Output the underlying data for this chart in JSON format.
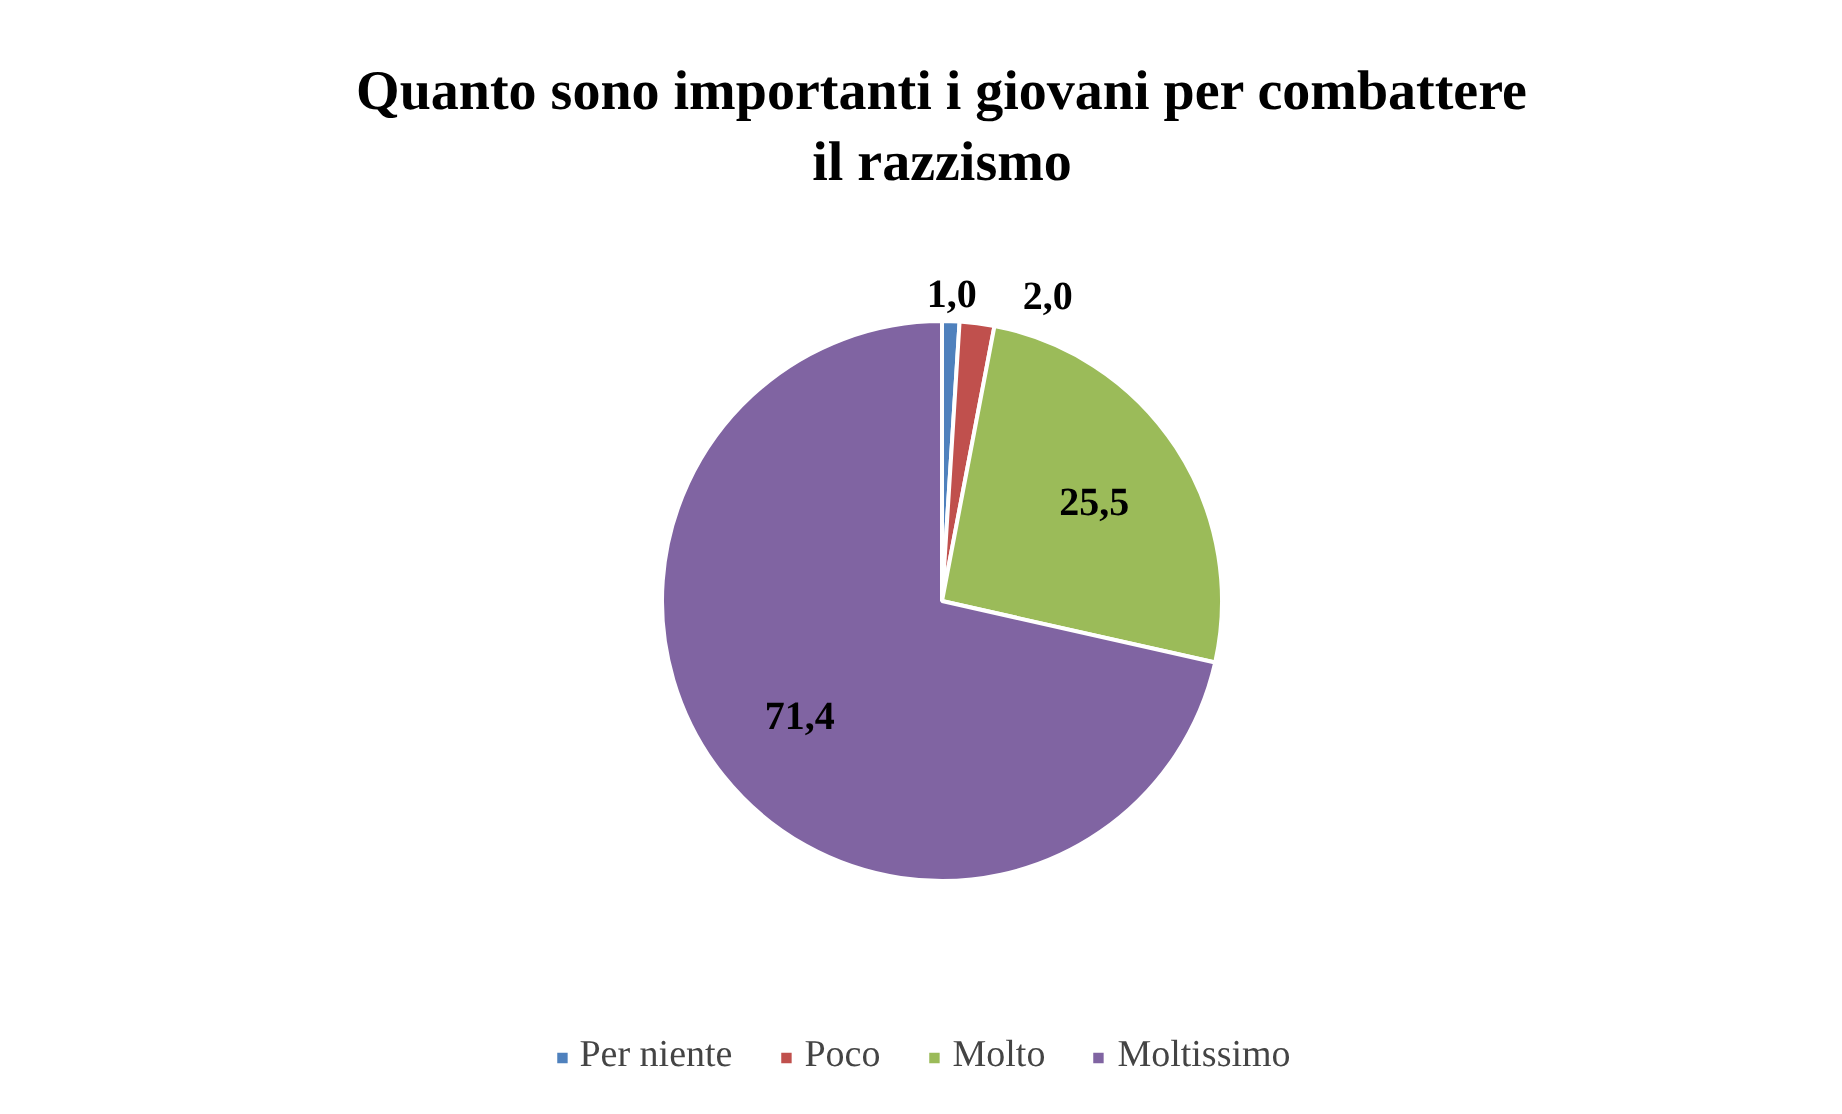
{
  "chart_data": {
    "type": "pie",
    "title": "Quanto sono importanti i giovani per combattere il razzismo",
    "categories": [
      "Per niente",
      "Poco",
      "Molto",
      "Moltissimo"
    ],
    "values": [
      1.0,
      2.0,
      25.5,
      71.4
    ],
    "colors": [
      "#4f81bd",
      "#c0504d",
      "#9bbb59",
      "#8064a2"
    ],
    "value_labels": [
      "1,0",
      "2,0",
      "25,5",
      "71,4"
    ],
    "legend": "bottom"
  }
}
